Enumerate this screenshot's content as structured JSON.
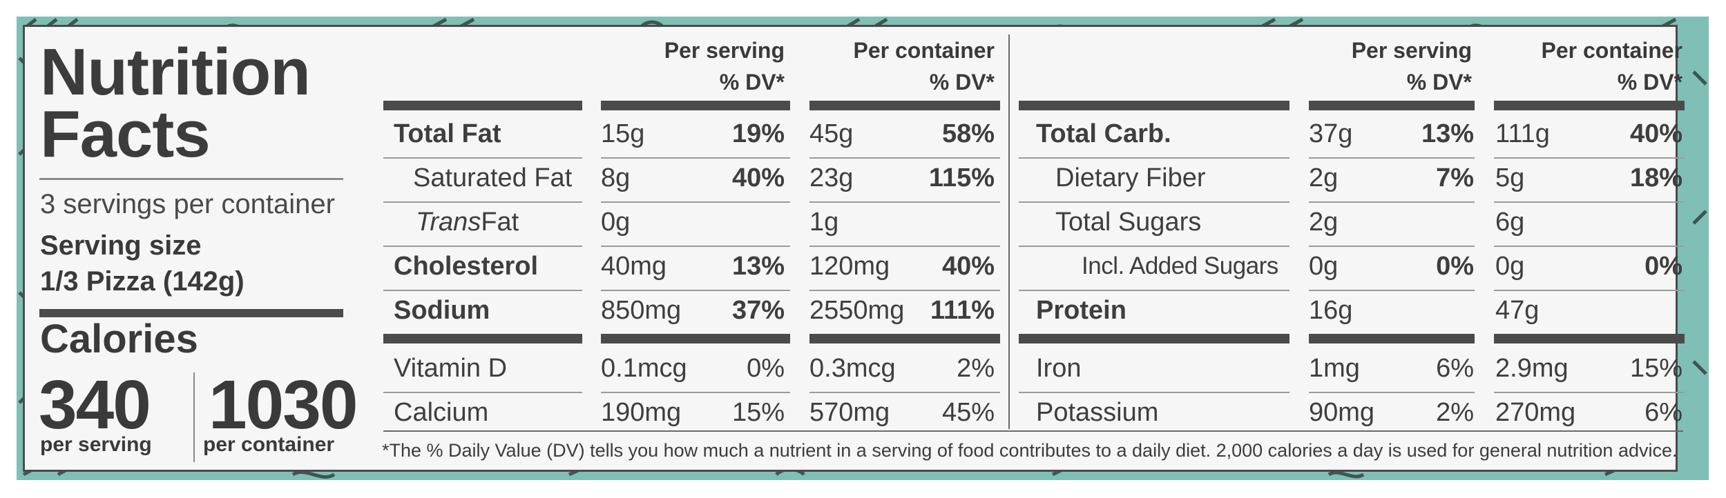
{
  "title": {
    "line1": "Nutrition",
    "line2": "Facts"
  },
  "servings_per_container": "3 servings per container",
  "serving_size": {
    "label": "Serving size",
    "value": "1/3 Pizza (142g)"
  },
  "calories": {
    "label": "Calories",
    "per_serving": "340",
    "per_container": "1030",
    "per_serving_label": "per serving",
    "per_container_label": "per container"
  },
  "headers": {
    "per_serving": "Per serving",
    "per_container": "Per container",
    "dv": "% DV*"
  },
  "left_rows": [
    {
      "name": "Total Fat",
      "ps_amt": "15g",
      "ps_dv": "19%",
      "pc_amt": "45g",
      "pc_dv": "58%"
    },
    {
      "name": "Saturated Fat",
      "ps_amt": "8g",
      "ps_dv": "40%",
      "pc_amt": "23g",
      "pc_dv": "115%"
    },
    {
      "name_italic": "Trans",
      "name_rest": "Fat",
      "ps_amt": "0g",
      "pc_amt": "1g"
    },
    {
      "name": "Cholesterol",
      "ps_amt": "40mg",
      "ps_dv": "13%",
      "pc_amt": "120mg",
      "pc_dv": "40%"
    },
    {
      "name": "Sodium",
      "ps_amt": "850mg",
      "ps_dv": "37%",
      "pc_amt": "2550mg",
      "pc_dv": "111%"
    },
    {
      "name": "Vitamin D",
      "ps_amt": "0.1mcg",
      "ps_dv": "0%",
      "pc_amt": "0.3mcg",
      "pc_dv": "2%"
    },
    {
      "name": "Calcium",
      "ps_amt": "190mg",
      "ps_dv": "15%",
      "pc_amt": "570mg",
      "pc_dv": "45%"
    }
  ],
  "right_rows": [
    {
      "name": "Total Carb.",
      "ps_amt": "37g",
      "ps_dv": "13%",
      "pc_amt": "111g",
      "pc_dv": "40%"
    },
    {
      "name": "Dietary Fiber",
      "ps_amt": "2g",
      "ps_dv": "7%",
      "pc_amt": "5g",
      "pc_dv": "18%"
    },
    {
      "name": "Total Sugars",
      "ps_amt": "2g",
      "pc_amt": "6g"
    },
    {
      "name": "Incl. Added Sugars",
      "ps_amt": "0g",
      "ps_dv": "0%",
      "pc_amt": "0g",
      "pc_dv": "0%"
    },
    {
      "name": "Protein",
      "ps_amt": "16g",
      "pc_amt": "47g"
    },
    {
      "name": "Iron",
      "ps_amt": "1mg",
      "ps_dv": "6%",
      "pc_amt": "2.9mg",
      "pc_dv": "15%"
    },
    {
      "name": "Potassium",
      "ps_amt": "90mg",
      "ps_dv": "2%",
      "pc_amt": "270mg",
      "pc_dv": "6%"
    }
  ],
  "footnote": "*The % Daily Value (DV) tells you how much a nutrient in a serving of food contributes to a daily diet. 2,000 calories a day is used for general nutrition advice.",
  "colors": {
    "teal": "#7fbfb5",
    "panel": "#f6f6f7",
    "ink": "#3a3a3a"
  }
}
